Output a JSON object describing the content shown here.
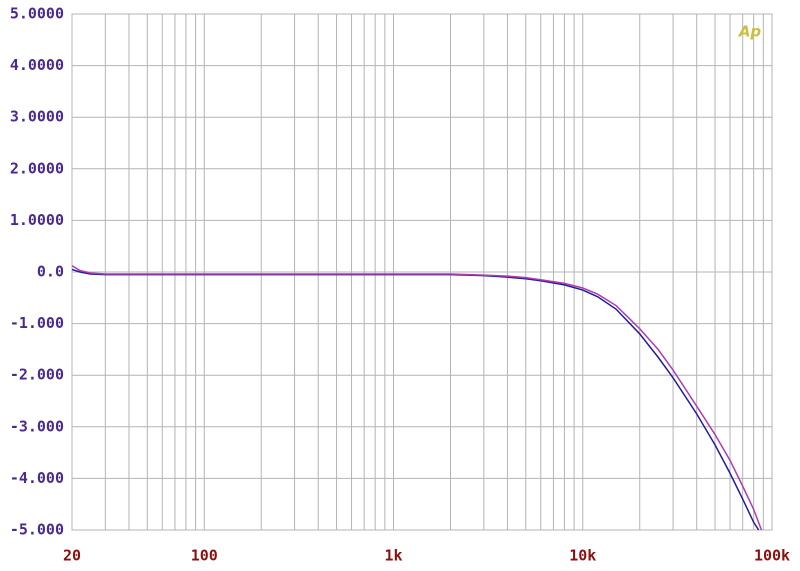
{
  "chart_data": {
    "type": "line",
    "logo": "Ap",
    "x_scale": "log",
    "grid": true,
    "xlim": [
      20,
      100000
    ],
    "ylim": [
      -5,
      5
    ],
    "xticks": [
      20,
      100,
      {
        "value": 1000,
        "label": "1k"
      },
      {
        "value": 10000,
        "label": "10k"
      },
      {
        "value": 100000,
        "label": "100k"
      }
    ],
    "x_minor_grid": [
      30,
      40,
      50,
      60,
      70,
      80,
      90,
      200,
      300,
      400,
      500,
      600,
      700,
      800,
      900,
      2000,
      3000,
      4000,
      5000,
      6000,
      7000,
      8000,
      9000,
      20000,
      30000,
      40000,
      50000,
      60000,
      70000,
      80000,
      90000
    ],
    "yticks": [
      {
        "value": 5,
        "label": "5.0000"
      },
      {
        "value": 4,
        "label": "4.0000"
      },
      {
        "value": 3,
        "label": "3.0000"
      },
      {
        "value": 2,
        "label": "2.0000"
      },
      {
        "value": 1,
        "label": "1.0000"
      },
      {
        "value": 0,
        "label": "0.0"
      },
      {
        "value": -1,
        "label": "-1.000"
      },
      {
        "value": -2,
        "label": "-2.000"
      },
      {
        "value": -3,
        "label": "-3.000"
      },
      {
        "value": -4,
        "label": "-4.000"
      },
      {
        "value": -5,
        "label": "-5.000"
      }
    ],
    "series": [
      {
        "color": "#1f1f9e",
        "x": [
          20,
          22,
          25,
          30,
          50,
          100,
          200,
          500,
          1000,
          2000,
          3000,
          4000,
          5000,
          6000,
          8000,
          10000,
          12000,
          15000,
          20000,
          25000,
          30000,
          40000,
          50000,
          60000,
          70000,
          80000,
          85000
        ],
        "values": [
          0.05,
          0.0,
          -0.04,
          -0.05,
          -0.05,
          -0.05,
          -0.05,
          -0.05,
          -0.05,
          -0.05,
          -0.07,
          -0.1,
          -0.13,
          -0.17,
          -0.25,
          -0.35,
          -0.48,
          -0.72,
          -1.2,
          -1.65,
          -2.05,
          -2.75,
          -3.35,
          -3.9,
          -4.4,
          -4.85,
          -5.0
        ]
      },
      {
        "color": "#b03cb0",
        "x": [
          20,
          22,
          25,
          30,
          50,
          100,
          200,
          500,
          1000,
          2000,
          3000,
          4000,
          5000,
          6000,
          8000,
          10000,
          12000,
          15000,
          20000,
          25000,
          30000,
          40000,
          50000,
          60000,
          70000,
          80000,
          88000
        ],
        "values": [
          0.12,
          0.03,
          -0.02,
          -0.04,
          -0.04,
          -0.04,
          -0.04,
          -0.04,
          -0.04,
          -0.04,
          -0.06,
          -0.08,
          -0.11,
          -0.15,
          -0.22,
          -0.31,
          -0.43,
          -0.65,
          -1.1,
          -1.5,
          -1.9,
          -2.6,
          -3.15,
          -3.65,
          -4.15,
          -4.6,
          -5.0
        ]
      }
    ]
  }
}
